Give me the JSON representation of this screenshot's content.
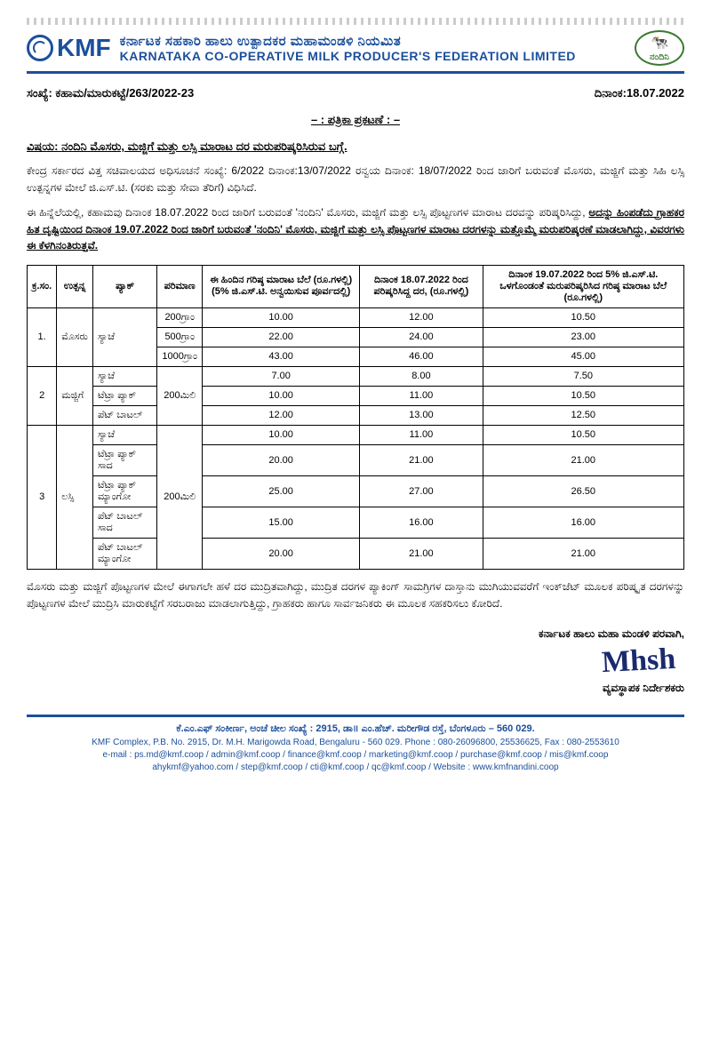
{
  "header": {
    "kmf_label": "KMF",
    "title_kn": "ಕರ್ನಾಟಕ ಸಹಕಾರಿ ಹಾಲು ಉತ್ಪಾದಕರ ಮಹಾಮಂಡಳಿ ನಿಯಮಿತ",
    "title_en": "KARNATAKA CO-OPERATIVE MILK PRODUCER'S FEDERATION LIMITED",
    "nandini_label": "ನಂದಿನಿ"
  },
  "ref": {
    "no": "ಸಂಖ್ಯೆ: ಕಹಾಮ/ಮಾರುಕಟ್ಟೆ/263/2022-23",
    "date": "ದಿನಾಂಕ:18.07.2022"
  },
  "press_release_label": "– : ಪತ್ರಿಕಾ ಪ್ರಕಟಣೆ : –",
  "subject_label": "ವಿಷಯ:",
  "subject_text": "ನಂದಿನಿ ಮೊಸರು, ಮಜ್ಜಿಗೆ ಮತ್ತು ಲಸ್ಸಿ ಮಾರಾಟ ದರ ಮರುಪರಿಷ್ಕರಿಸಿರುವ ಬಗ್ಗೆ.",
  "para1": "ಕೇಂದ್ರ ಸರ್ಕಾರದ ವಿತ್ತ ಸಚಿವಾಲಯದ ಅಧಿಸೂಚನೆ ಸಂಖ್ಯೆ: 6/2022 ದಿನಾಂಕ:13/07/2022 ರನ್ವಯ ದಿನಾಂಕ: 18/07/2022 ರಿಂದ ಜಾರಿಗೆ ಬರುವಂತೆ ಮೊಸರು, ಮಜ್ಜಿಗೆ ಮತ್ತು ಸಿಹಿ ಲಸ್ಸಿ ಉತ್ಪನ್ನಗಳ ಮೇಲೆ ಜಿ.ಎಸ್.ಟಿ. (ಸರಕು ಮತ್ತು ಸೇವಾ ತೆರಿಗೆ) ವಿಧಿಸಿದೆ.",
  "para2_a": "ಈ ಹಿನ್ನೆಲೆಯಲ್ಲಿ, ಕಹಾಮವು ದಿನಾಂಕ 18.07.2022 ರಿಂದ ಜಾರಿಗೆ ಬರುವಂತೆ 'ನಂದಿನಿ' ಮೊಸರು, ಮಜ್ಜಿಗೆ ಮತ್ತು ಲಸ್ಸಿ ಪೊಟ್ಟಣಗಳ ಮಾರಾಟ ದರವನ್ನು ಪರಿಷ್ಕರಿಸಿದ್ದು, ",
  "para2_u": "ಅದನ್ನು ಹಿಂಪಡೆದು ಗ್ರಾಹಕರ ಹಿತ ದೃಷ್ಟಿಯಿಂದ ದಿನಾಂಕ 19.07.2022 ರಿಂದ ಜಾರಿಗೆ ಬರುವಂತೆ 'ನಂದಿನಿ' ಮೊಸರು, ಮಜ್ಜಿಗೆ ಮತ್ತು ಲಸ್ಸಿ ಪೊಟ್ಟಣಗಳ ಮಾರಾಟ ದರಗಳನ್ನು ಮತ್ತೊಮ್ಮೆ ಮರುಪರಿಷ್ಕರಣೆ ಮಾಡಲಾಗಿದ್ದು, ವಿವರಗಳು ಈ ಕೆಳಗಿನಂತಿರುತ್ತವೆ.",
  "table": {
    "headers": {
      "sl": "ಕ್ರ.ಸಂ.",
      "product": "ಉತ್ಪನ್ನ",
      "pack": "ಪ್ಯಾಕ್",
      "qty": "ಪರಿಮಾಣ",
      "old_mrp": "ಈ ಹಿಂದಿನ ಗರಿಷ್ಠ ಮಾರಾಟ ಬೆಲೆ (ರೂ.ಗಳಲ್ಲಿ)(5% ಜಿ.ಎಸ್.ಟಿ. ಅನ್ವಯಿಸುವ ಪೂರ್ವದಲ್ಲಿ)",
      "rate_18": "ದಿನಾಂಕ 18.07.2022 ರಿಂದ ಪರಿಷ್ಕರಿಸಿದ್ದ ದರ, (ರೂ.ಗಳಲ್ಲಿ)",
      "rate_19": "ದಿನಾಂಕ 19.07.2022 ರಿಂದ 5% ಜಿ.ಎಸ್.ಟಿ. ಒಳಗೊಂಡಂತೆ ಮರುಪರಿಷ್ಕರಿಸಿದ ಗರಿಷ್ಠ ಮಾರಾಟ ಬೆಲೆ (ರೂ.ಗಳಲ್ಲಿ)"
    },
    "r1": {
      "sl": "1.",
      "product": "ಮೊಸರು",
      "pack": "ಸ್ಯಾಚೆ",
      "a": {
        "qty": "200ಗ್ರಾಂ",
        "old": "10.00",
        "p18": "12.00",
        "p19": "10.50"
      },
      "b": {
        "qty": "500ಗ್ರಾಂ",
        "old": "22.00",
        "p18": "24.00",
        "p19": "23.00"
      },
      "c": {
        "qty": "1000ಗ್ರಾಂ",
        "old": "43.00",
        "p18": "46.00",
        "p19": "45.00"
      }
    },
    "r2": {
      "sl": "2",
      "product": "ಮಜ್ಜಿಗೆ",
      "qty": "200ಮಿಲಿ",
      "a": {
        "pack": "ಸ್ಯಾಚೆ",
        "old": "7.00",
        "p18": "8.00",
        "p19": "7.50"
      },
      "b": {
        "pack": "ಟೆಟ್ರಾ ಪ್ಯಾಕ್",
        "old": "10.00",
        "p18": "11.00",
        "p19": "10.50"
      },
      "c": {
        "pack": "ಪೆಟ್ ಬಾಟಲ್",
        "old": "12.00",
        "p18": "13.00",
        "p19": "12.50"
      }
    },
    "r3": {
      "sl": "3",
      "product": "ಲಸ್ಸಿ",
      "qty": "200ಮಿಲಿ",
      "a": {
        "pack": "ಸ್ಯಾಚೆ",
        "old": "10.00",
        "p18": "11.00",
        "p19": "10.50"
      },
      "b": {
        "pack": "ಟೆಟ್ರಾ ಪ್ಯಾಕ್ ಸಾದ",
        "old": "20.00",
        "p18": "21.00",
        "p19": "21.00"
      },
      "c": {
        "pack": "ಟೆಟ್ರಾ ಪ್ಯಾಕ್ ಮ್ಯಾಂಗೋ",
        "old": "25.00",
        "p18": "27.00",
        "p19": "26.50"
      },
      "d": {
        "pack": "ಪೆಟ್ ಬಾಟಲ್ ಸಾದ",
        "old": "15.00",
        "p18": "16.00",
        "p19": "16.00"
      },
      "e": {
        "pack": "ಪೆಟ್ ಬಾಟಲ್ ಮ್ಯಾಂಗೋ",
        "old": "20.00",
        "p18": "21.00",
        "p19": "21.00"
      }
    }
  },
  "para3": "ಮೊಸರು ಮತ್ತು ಮಜ್ಜಿಗೆ ಪೊಟ್ಟಣಗಳ ಮೇಲೆ ಈಗಾಗಲೇ ಹಳೆ ದರ ಮುದ್ರಿತವಾಗಿದ್ದು, ಮುದ್ರಿತ ದರಗಳ ಪ್ಯಾಕಿಂಗ್ ಸಾಮಗ್ರಿಗಳ ದಾಸ್ತಾನು ಮುಗಿಯುವವರೆಗೆ ಇಂಕ್‌ಜೆಟ್ ಮೂಲಕ ಪರಿಷ್ಕೃತ ದರಗಳನ್ನು ಪೊಟ್ಟಣಗಳ ಮೇಲೆ ಮುದ್ರಿಸಿ ಮಾರುಕಟ್ಟೆಗೆ ಸರಬರಾಜು ಮಾಡಲಾಗುತ್ತಿದ್ದು, ಗ್ರಾಹಕರು ಹಾಗೂ ಸಾರ್ವಜನಿಕರು ಈ ಮೂಲಕ ಸಹಕರಿಸಲು ಕೋರಿದೆ.",
  "sign": {
    "line1": "ಕರ್ನಾಟಕ ಹಾಲು ಮಹಾ ಮಂಡಳಿ ಪರವಾಗಿ,",
    "line2": "ವ್ಯವಸ್ಥಾಪಕ ನಿರ್ದೇಶಕರು"
  },
  "footer": {
    "kn": "ಕೆ.ಎಂ.ಎಫ್ ಸಂಕೀರ್ಣ, ಅಂಚೆ ಚೀಲ ಸಂಖ್ಯೆ : 2915, ಡಾ॥ ಎಂ.ಹೆಚ್. ಮರೀಗೌಡ ರಸ್ತೆ, ಬೆಂಗಳೂರು – 560 029.",
    "en1": "KMF Complex, P.B. No. 2915, Dr. M.H. Marigowda Road, Bengaluru - 560 029. Phone : 080-26096800, 25536625, Fax : 080-2553610",
    "en2": "e-mail : ps.md@kmf.coop / admin@kmf.coop / finance@kmf.coop / marketing@kmf.coop / purchase@kmf.coop / mis@kmf.coop",
    "en3": "ahykmf@yahoo.com / step@kmf.coop / cti@kmf.coop / qc@kmf.coop / Website : www.kmfnandini.coop"
  },
  "colors": {
    "brand_blue": "#1b4f9c",
    "nandini_green": "#3a7a2f",
    "text": "#000000",
    "paper": "#ffffff"
  }
}
